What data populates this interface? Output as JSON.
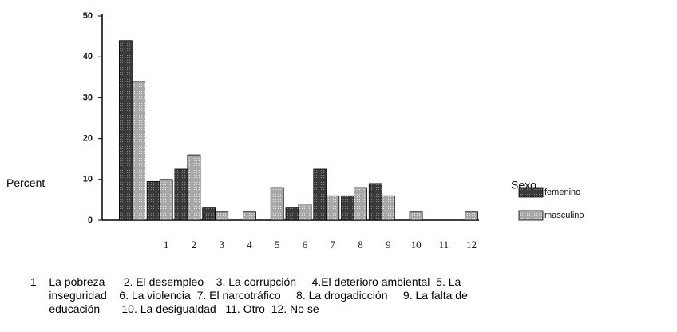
{
  "chart_data": {
    "type": "bar",
    "categories": [
      null,
      "1",
      "2",
      "3",
      "4",
      "5",
      "6",
      "7",
      "8",
      "9",
      "10",
      "11",
      "12"
    ],
    "series": [
      {
        "name": "femenino",
        "color": "#3a3a3a",
        "values": [
          44,
          9.5,
          12.5,
          3,
          0,
          0,
          3,
          12.5,
          6,
          9,
          0,
          0,
          0
        ]
      },
      {
        "name": "masculino",
        "color": "#a8a8a8",
        "values": [
          34,
          10,
          16,
          2,
          2,
          8,
          4,
          6,
          8,
          6,
          2,
          0,
          2
        ]
      }
    ],
    "ylim": [
      0,
      50
    ],
    "yticks": [
      0,
      10,
      20,
      30,
      40,
      50
    ],
    "ylabel": "Percent",
    "legend_title": "Sexo",
    "notes": [
      "1    La pobreza      2. El desempleo    3. La corrupción     4.El deterioro ambiental  5. La",
      "      inseguridad    6. La violencia  7. El narcotráfico     8. La drogadicción     9. La falta de",
      "      educación       10. La desigualdad   11. Otro  12. No se"
    ]
  }
}
